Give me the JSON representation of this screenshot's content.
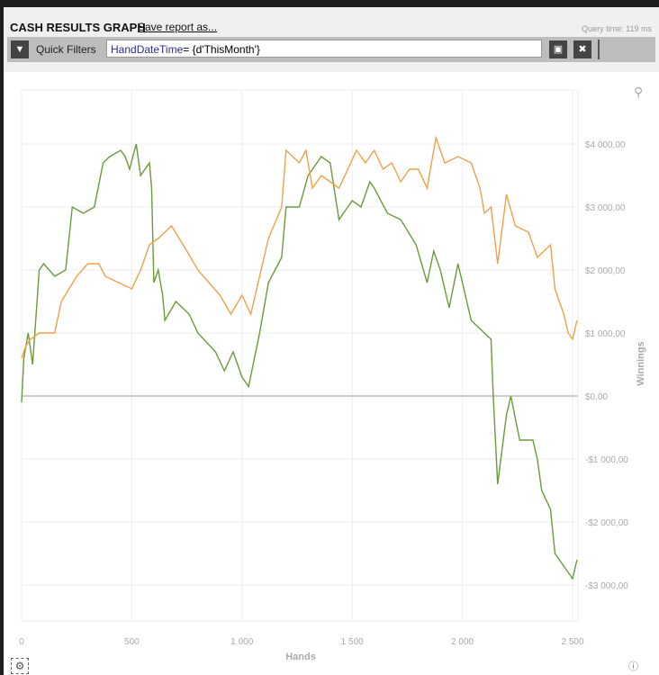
{
  "header": {
    "title": "CASH RESULTS GRAPH",
    "save_label": "Save report as...",
    "query_time": "Query time: 119 ms"
  },
  "filters": {
    "label": "Quick Filters",
    "field": "HandDateTime",
    "value": "= {d'ThisMonth'}",
    "icons": [
      "filter-icon",
      "save-icon",
      "close-icon"
    ]
  },
  "chart_data": {
    "type": "line",
    "xlabel": "Hands",
    "ylabel": "Winnings",
    "xlim": [
      0,
      2550
    ],
    "ylim": [
      -3300,
      4700
    ],
    "xticks": [
      0,
      500,
      1000,
      1500,
      2000,
      2500
    ],
    "xtick_labels": [
      "0",
      "500",
      "1 000",
      "1 500",
      "2 000",
      "2 500"
    ],
    "yticks": [
      4000,
      3000,
      2000,
      1000,
      0,
      -1000,
      -2000,
      -3000
    ],
    "ytick_labels": [
      "$4 000,00",
      "$3 000,00",
      "$2 000,00",
      "$1 000,00",
      "$0,00",
      "-$1 000,00",
      "-$2 000,00",
      "-$3 000,00"
    ],
    "grid": true,
    "series": [
      {
        "color": "#6a9a3a",
        "points": [
          [
            0,
            -100
          ],
          [
            10,
            600
          ],
          [
            30,
            1000
          ],
          [
            50,
            500
          ],
          [
            80,
            2000
          ],
          [
            100,
            2100
          ],
          [
            150,
            1900
          ],
          [
            200,
            2000
          ],
          [
            230,
            3000
          ],
          [
            280,
            2900
          ],
          [
            330,
            3000
          ],
          [
            370,
            3700
          ],
          [
            400,
            3800
          ],
          [
            450,
            3900
          ],
          [
            470,
            3800
          ],
          [
            490,
            3600
          ],
          [
            520,
            4000
          ],
          [
            540,
            3500
          ],
          [
            580,
            3700
          ],
          [
            590,
            3300
          ],
          [
            600,
            1800
          ],
          [
            620,
            2000
          ],
          [
            640,
            1600
          ],
          [
            650,
            1200
          ],
          [
            700,
            1500
          ],
          [
            760,
            1300
          ],
          [
            800,
            1000
          ],
          [
            880,
            700
          ],
          [
            920,
            400
          ],
          [
            960,
            700
          ],
          [
            1000,
            300
          ],
          [
            1030,
            150
          ],
          [
            1080,
            1000
          ],
          [
            1120,
            1800
          ],
          [
            1180,
            2200
          ],
          [
            1200,
            3000
          ],
          [
            1260,
            3000
          ],
          [
            1300,
            3500
          ],
          [
            1360,
            3800
          ],
          [
            1400,
            3700
          ],
          [
            1440,
            2800
          ],
          [
            1500,
            3100
          ],
          [
            1540,
            3000
          ],
          [
            1580,
            3400
          ],
          [
            1600,
            3300
          ],
          [
            1660,
            2900
          ],
          [
            1720,
            2800
          ],
          [
            1790,
            2400
          ],
          [
            1840,
            1800
          ],
          [
            1870,
            2300
          ],
          [
            1900,
            2000
          ],
          [
            1940,
            1400
          ],
          [
            1980,
            2100
          ],
          [
            2040,
            1200
          ],
          [
            2100,
            1000
          ],
          [
            2130,
            900
          ],
          [
            2140,
            0
          ],
          [
            2160,
            -1400
          ],
          [
            2200,
            -300
          ],
          [
            2220,
            0
          ],
          [
            2260,
            -700
          ],
          [
            2320,
            -700
          ],
          [
            2340,
            -1000
          ],
          [
            2360,
            -1500
          ],
          [
            2400,
            -1800
          ],
          [
            2420,
            -2500
          ],
          [
            2480,
            -2800
          ],
          [
            2500,
            -2900
          ],
          [
            2520,
            -2600
          ]
        ]
      },
      {
        "color": "#f0a048",
        "points": [
          [
            0,
            600
          ],
          [
            20,
            800
          ],
          [
            40,
            900
          ],
          [
            80,
            1000
          ],
          [
            150,
            1000
          ],
          [
            180,
            1500
          ],
          [
            250,
            1900
          ],
          [
            300,
            2100
          ],
          [
            350,
            2100
          ],
          [
            380,
            1900
          ],
          [
            500,
            1700
          ],
          [
            540,
            2000
          ],
          [
            580,
            2400
          ],
          [
            620,
            2500
          ],
          [
            680,
            2700
          ],
          [
            750,
            2300
          ],
          [
            800,
            2000
          ],
          [
            900,
            1600
          ],
          [
            950,
            1300
          ],
          [
            1000,
            1600
          ],
          [
            1040,
            1300
          ],
          [
            1080,
            1900
          ],
          [
            1120,
            2500
          ],
          [
            1180,
            3000
          ],
          [
            1200,
            3900
          ],
          [
            1260,
            3700
          ],
          [
            1290,
            3900
          ],
          [
            1320,
            3300
          ],
          [
            1360,
            3500
          ],
          [
            1400,
            3400
          ],
          [
            1440,
            3300
          ],
          [
            1480,
            3600
          ],
          [
            1520,
            3900
          ],
          [
            1560,
            3700
          ],
          [
            1600,
            3900
          ],
          [
            1640,
            3600
          ],
          [
            1680,
            3700
          ],
          [
            1720,
            3400
          ],
          [
            1760,
            3600
          ],
          [
            1800,
            3600
          ],
          [
            1840,
            3300
          ],
          [
            1880,
            4100
          ],
          [
            1920,
            3700
          ],
          [
            1980,
            3800
          ],
          [
            2040,
            3700
          ],
          [
            2080,
            3300
          ],
          [
            2100,
            2900
          ],
          [
            2130,
            3000
          ],
          [
            2160,
            2100
          ],
          [
            2200,
            3200
          ],
          [
            2240,
            2700
          ],
          [
            2300,
            2600
          ],
          [
            2340,
            2200
          ],
          [
            2400,
            2400
          ],
          [
            2420,
            1700
          ],
          [
            2460,
            1300
          ],
          [
            2480,
            1000
          ],
          [
            2500,
            900
          ],
          [
            2520,
            1200
          ]
        ]
      }
    ]
  }
}
